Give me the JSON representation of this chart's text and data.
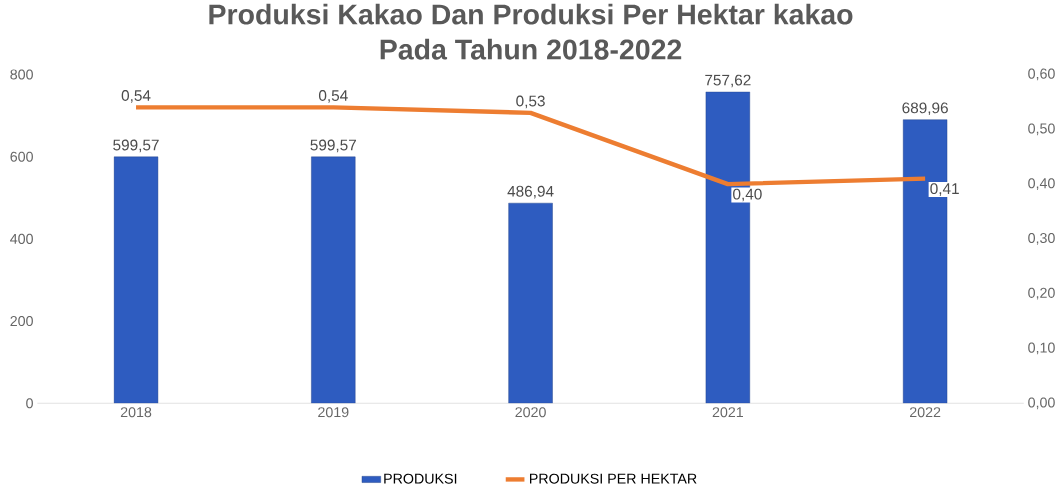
{
  "chart_data": {
    "type": "bar",
    "title": "Produksi Kakao Dan Produksi Per Hektar kakao Pada Tahun 2018-2022",
    "categories": [
      "2018",
      "2019",
      "2020",
      "2021",
      "2022"
    ],
    "series": [
      {
        "name": "PRODUKSI",
        "color": "#2e5cc0",
        "values": [
          599.57,
          599.57,
          486.94,
          757.62,
          689.96
        ],
        "value_labels": [
          "599,57",
          "599,57",
          "486,94",
          "757,62",
          "689,96"
        ]
      },
      {
        "name": "PRODUKSI PER HEKTAR",
        "type": "line",
        "axis": "y2",
        "color": "#ed7d31",
        "values": [
          0.54,
          0.54,
          0.53,
          0.4,
          0.41
        ],
        "value_labels": [
          "0,54",
          "0,54",
          "0,53",
          "0,40",
          "0,41"
        ]
      }
    ],
    "ylim": [
      0,
      800
    ],
    "yticks": [
      0,
      200,
      400,
      600,
      800
    ],
    "y2lim": [
      0,
      0.6
    ],
    "y2ticks": [
      {
        "value": 0,
        "label": "0,00"
      },
      {
        "value": 0.1,
        "label": "0,10"
      },
      {
        "value": 0.2,
        "label": "0,20"
      },
      {
        "value": 0.3,
        "label": "0,30"
      },
      {
        "value": 0.4,
        "label": "0,40"
      },
      {
        "value": 0.5,
        "label": "0,50"
      },
      {
        "value": 0.6,
        "label": "0,60"
      }
    ],
    "legend": "bottom"
  }
}
